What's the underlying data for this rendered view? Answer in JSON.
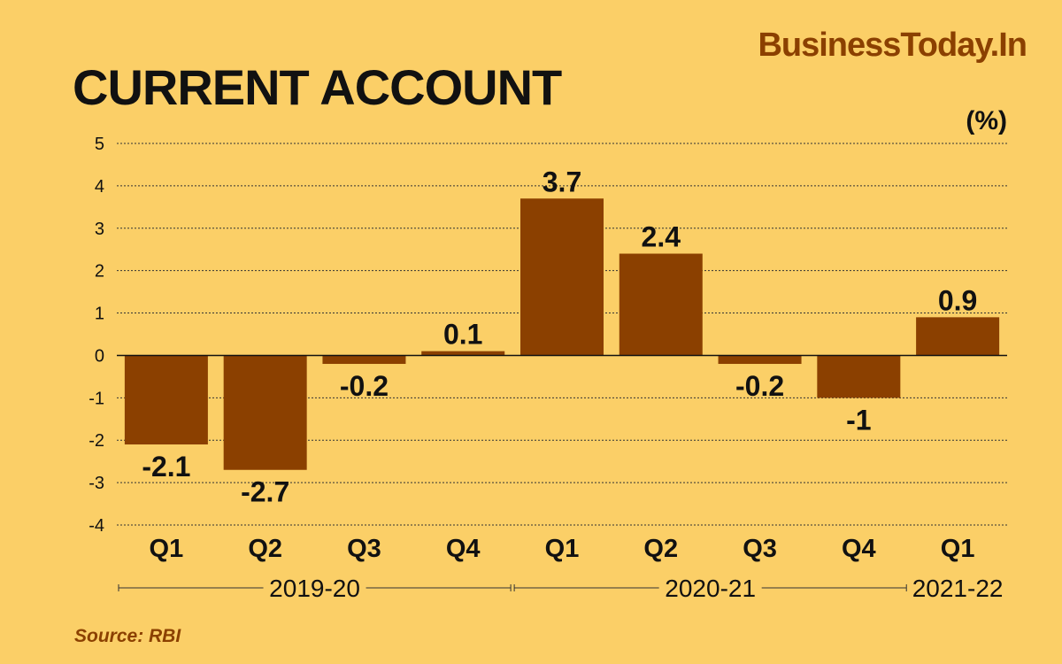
{
  "brand": "BusinessToday.In",
  "source": "Source: RBI",
  "chart_data": {
    "type": "bar",
    "title": "CURRENT ACCOUNT",
    "unit_label": "(%)",
    "categories": [
      "Q1",
      "Q2",
      "Q3",
      "Q4",
      "Q1",
      "Q2",
      "Q3",
      "Q4",
      "Q1"
    ],
    "values": [
      -2.1,
      -2.7,
      -0.2,
      0.1,
      3.7,
      2.4,
      -0.2,
      -1,
      0.9
    ],
    "value_labels": [
      "-2.1",
      "-2.7",
      "-0.2",
      "0.1",
      "3.7",
      "2.4",
      "-0.2",
      "-1",
      "0.9"
    ],
    "groups": [
      {
        "label": "2019-20",
        "start": 0,
        "end": 3
      },
      {
        "label": "2020-21",
        "start": 4,
        "end": 7
      },
      {
        "label": "2021-22",
        "start": 8,
        "end": 8
      }
    ],
    "ylim": [
      -4,
      5
    ],
    "yticks": [
      5,
      4,
      3,
      2,
      1,
      0,
      -1,
      -2,
      -3,
      -4
    ],
    "grid": true,
    "colors": {
      "bar": "#8b4000",
      "grid": "#333333",
      "background": "#fbcf67"
    }
  }
}
